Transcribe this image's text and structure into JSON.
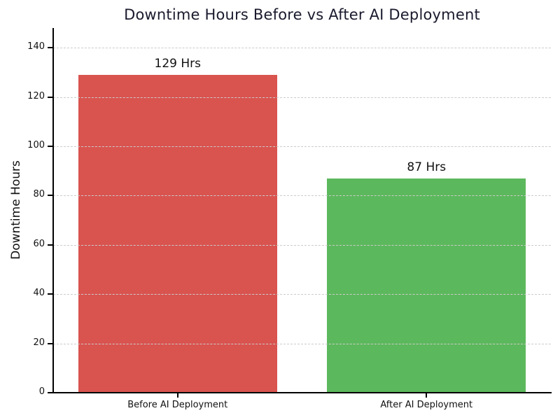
{
  "chart_data": {
    "type": "bar",
    "title": "Downtime Hours Before vs After AI Deployment",
    "ylabel": "Downtime Hours",
    "xlabel": "",
    "categories": [
      "Before AI Deployment",
      "After AI Deployment"
    ],
    "values": [
      129,
      87
    ],
    "value_labels": [
      "129 Hrs",
      "87 Hrs"
    ],
    "bar_colors": [
      "#d9534f",
      "#5cb85c"
    ],
    "yticks": [
      0,
      20,
      40,
      60,
      80,
      100,
      120,
      140
    ],
    "ylim": [
      0,
      148
    ],
    "grid": {
      "axis": "y",
      "style": "dashed",
      "color": "#cccccc",
      "over_bars": true
    },
    "legend": "none",
    "background_color": "#ffffff",
    "title_color": "#1a1a2e",
    "axis_color": "#000000",
    "label_color": "#111111"
  }
}
